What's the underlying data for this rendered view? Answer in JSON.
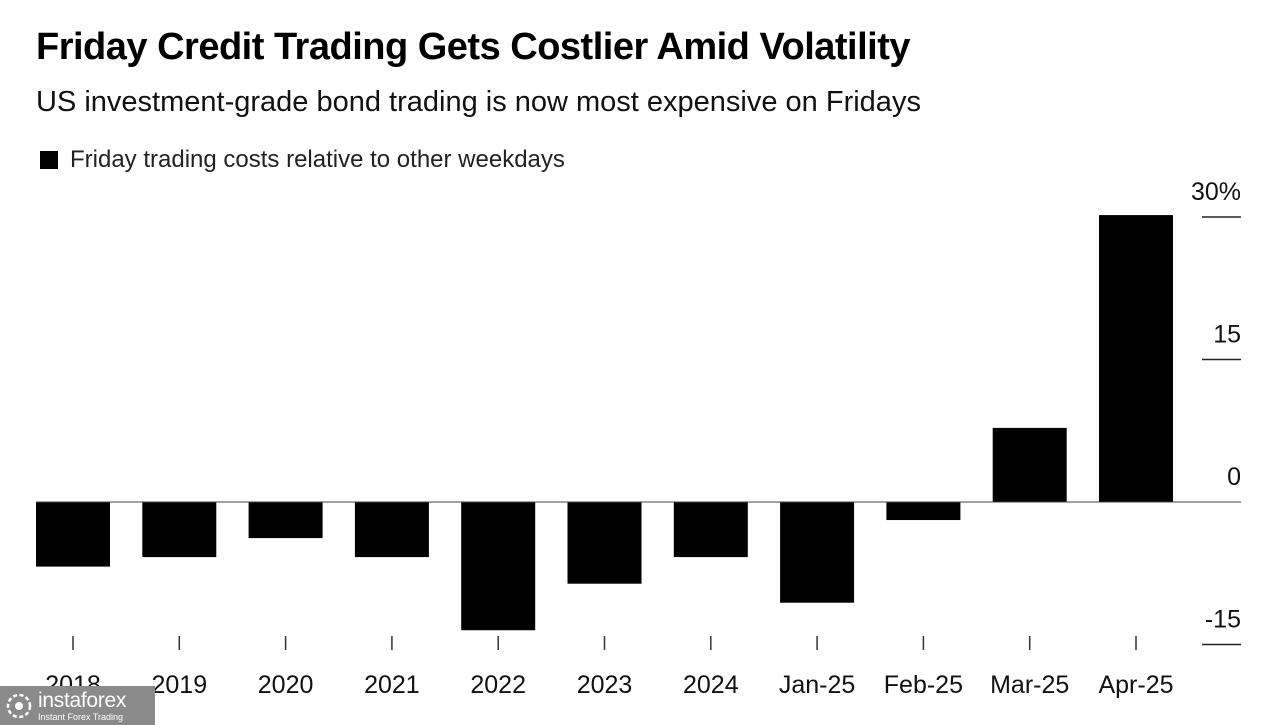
{
  "title": "Friday Credit Trading Gets Costlier Amid Volatility",
  "subtitle": "US investment-grade bond trading is now most expensive on Fridays",
  "legend": {
    "label": "Friday trading costs relative to other weekdays",
    "color": "#000000"
  },
  "watermark": {
    "brand": "instaforex",
    "tagline": "Instant Forex Trading"
  },
  "chart_data": {
    "type": "bar",
    "title": "Friday Credit Trading Gets Costlier Amid Volatility",
    "subtitle": "US investment-grade bond trading is now most expensive on Fridays",
    "categories": [
      "2018",
      "2019",
      "2020",
      "2021",
      "2022",
      "2023",
      "2024",
      "Jan-25",
      "Feb-25",
      "Mar-25",
      "Apr-25"
    ],
    "series": [
      {
        "name": "Friday trading costs relative to other weekdays",
        "values": [
          -6.8,
          -5.8,
          -3.8,
          -5.8,
          -13.5,
          -8.6,
          -5.8,
          -10.6,
          -1.9,
          7.8,
          30.2
        ]
      }
    ],
    "y_ticks": [
      30,
      15,
      0,
      -15
    ],
    "y_tick_labels": [
      "30%",
      "15",
      "0",
      "-15"
    ],
    "ylim": [
      -15,
      30
    ],
    "y_axis_side": "right",
    "bar_color": "#000000",
    "xlabel": "",
    "ylabel": "",
    "grid": false
  }
}
